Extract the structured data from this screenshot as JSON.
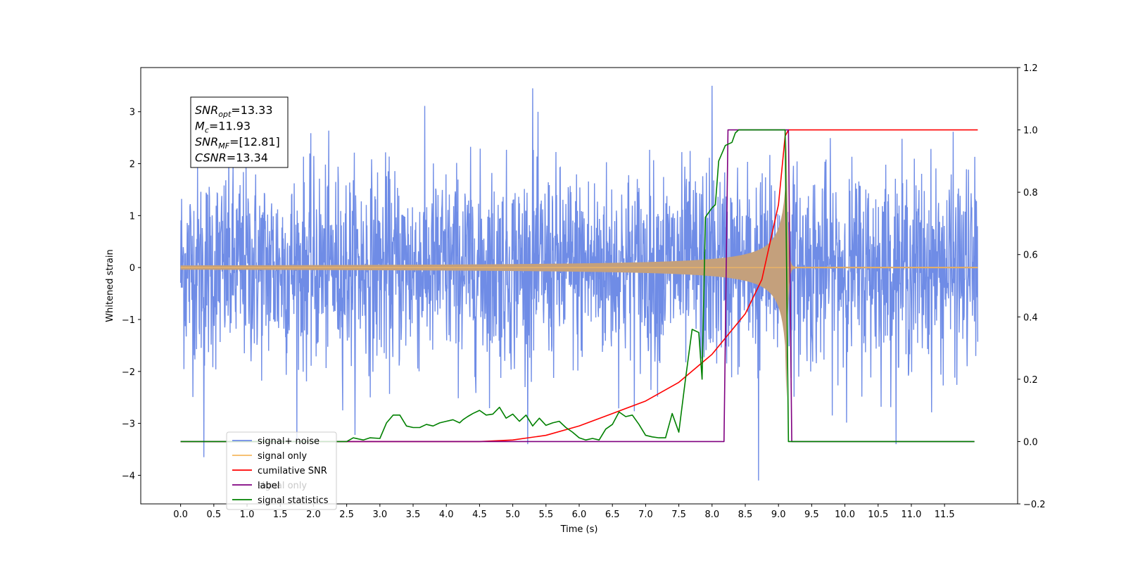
{
  "chart_data": {
    "type": "line",
    "xlabel": "Time (s)",
    "ylabel": "Whitened strain",
    "xlim": [
      -0.6,
      12.6
    ],
    "ylim": [
      -4.55,
      3.85
    ],
    "y2lim": [
      -0.2,
      1.2
    ],
    "x_ticks": [
      0.0,
      0.5,
      1.0,
      1.5,
      2.0,
      2.5,
      3.0,
      3.5,
      4.0,
      4.5,
      5.0,
      5.5,
      6.0,
      6.5,
      7.0,
      7.5,
      8.0,
      8.5,
      9.0,
      9.5,
      10.0,
      10.5,
      11.0,
      11.5
    ],
    "x_tick_labels": [
      "0.0",
      "0.5",
      "1.0",
      "1.5",
      "2.0",
      "2.5",
      "3.0",
      "3.5",
      "4.0",
      "4.5",
      "5.0",
      "5.5",
      "6.0",
      "6.5",
      "7.0",
      "7.5",
      "8.0",
      "8.5",
      "9.0",
      "9.5",
      "10.0",
      "10.5",
      "11.0",
      "11.5"
    ],
    "y_ticks": [
      3,
      2,
      1,
      0,
      -1,
      -2,
      -3,
      -4
    ],
    "y_tick_labels": [
      "3",
      "2",
      "1",
      "0",
      "−1",
      "−2",
      "−3",
      "−4"
    ],
    "y2_ticks": [
      1.2,
      1.0,
      0.8,
      0.6,
      0.4,
      0.2,
      0.0,
      -0.2
    ],
    "y2_tick_labels": [
      "1.2",
      "1.0",
      "0.8",
      "0.6",
      "0.4",
      "0.2",
      "0.0",
      "−0.2"
    ],
    "grid": false,
    "legend_position": "lower-left",
    "annotation": {
      "lines": [
        {
          "var": "SNR",
          "sub": "opt",
          "value": "=13.33"
        },
        {
          "var": "M",
          "sub": "c",
          "value": "=11.93"
        },
        {
          "var": "SNR",
          "sub": "MF",
          "value": "=[12.81]"
        },
        {
          "var": "CSNR",
          "sub": "",
          "value": "=13.34"
        }
      ]
    },
    "legend_hidden_text": "signal only",
    "series": [
      {
        "name": "signal+ noise",
        "axis": "left",
        "color": "#6f8ce6",
        "description": "whitened noisy strain, |amplitude| up to ~3.5, spans 0 to 12 s",
        "noise_std": 1.0,
        "x_range": [
          0.0,
          12.0
        ]
      },
      {
        "name": "signal only",
        "axis": "left",
        "color": "#f4b860",
        "fill_color": "#c4a07c",
        "description": "chirp waveform, merger near 9.1 s",
        "merger_time": 9.12,
        "peak_amplitude": 2.5,
        "x_range": [
          0.0,
          12.0
        ]
      },
      {
        "name": "cumilative SNR",
        "axis": "right",
        "color": "#ff0000",
        "x": [
          0.0,
          4.5,
          5.0,
          5.5,
          6.0,
          6.5,
          7.0,
          7.5,
          8.0,
          8.5,
          8.75,
          9.0,
          9.1,
          9.15,
          12.0
        ],
        "y": [
          0.0,
          0.0,
          0.005,
          0.02,
          0.05,
          0.09,
          0.13,
          0.19,
          0.28,
          0.41,
          0.52,
          0.76,
          0.98,
          1.0,
          1.0
        ]
      },
      {
        "name": "label",
        "axis": "right",
        "color": "#800080",
        "x": [
          0.0,
          8.18,
          8.24,
          9.15,
          9.2,
          11.95
        ],
        "y": [
          0.0,
          0.0,
          1.0,
          1.0,
          0.0,
          0.0
        ]
      },
      {
        "name": "signal statistics",
        "axis": "right",
        "color": "#008000",
        "x": [
          0.0,
          2.5,
          2.6,
          2.75,
          2.85,
          3.0,
          3.1,
          3.2,
          3.3,
          3.4,
          3.5,
          3.6,
          3.7,
          3.8,
          3.9,
          4.0,
          4.1,
          4.2,
          4.25,
          4.32,
          4.4,
          4.5,
          4.6,
          4.7,
          4.8,
          4.9,
          5.0,
          5.1,
          5.2,
          5.3,
          5.4,
          5.5,
          5.6,
          5.7,
          5.8,
          5.9,
          6.0,
          6.1,
          6.2,
          6.3,
          6.4,
          6.5,
          6.6,
          6.7,
          6.8,
          6.9,
          7.0,
          7.1,
          7.2,
          7.3,
          7.4,
          7.5,
          7.6,
          7.7,
          7.8,
          7.85,
          7.9,
          8.0,
          8.05,
          8.1,
          8.2,
          8.3,
          8.35,
          8.4,
          8.5,
          8.6,
          8.7,
          8.8,
          9.0,
          9.1,
          9.15,
          9.18,
          9.2,
          11.95
        ],
        "y": [
          0.0,
          0.0,
          0.012,
          0.005,
          0.012,
          0.01,
          0.06,
          0.085,
          0.085,
          0.05,
          0.045,
          0.045,
          0.055,
          0.05,
          0.06,
          0.065,
          0.07,
          0.06,
          0.07,
          0.08,
          0.09,
          0.1,
          0.085,
          0.088,
          0.11,
          0.075,
          0.088,
          0.065,
          0.085,
          0.05,
          0.075,
          0.052,
          0.06,
          0.065,
          0.045,
          0.03,
          0.012,
          0.005,
          0.01,
          0.005,
          0.04,
          0.055,
          0.095,
          0.08,
          0.085,
          0.055,
          0.02,
          0.015,
          0.012,
          0.012,
          0.09,
          0.03,
          0.2,
          0.36,
          0.35,
          0.2,
          0.72,
          0.75,
          0.76,
          0.9,
          0.95,
          0.96,
          0.99,
          1.0,
          1.0,
          1.0,
          1.0,
          1.0,
          1.0,
          1.0,
          0.0,
          0.0,
          0.0,
          0.0
        ]
      }
    ]
  }
}
